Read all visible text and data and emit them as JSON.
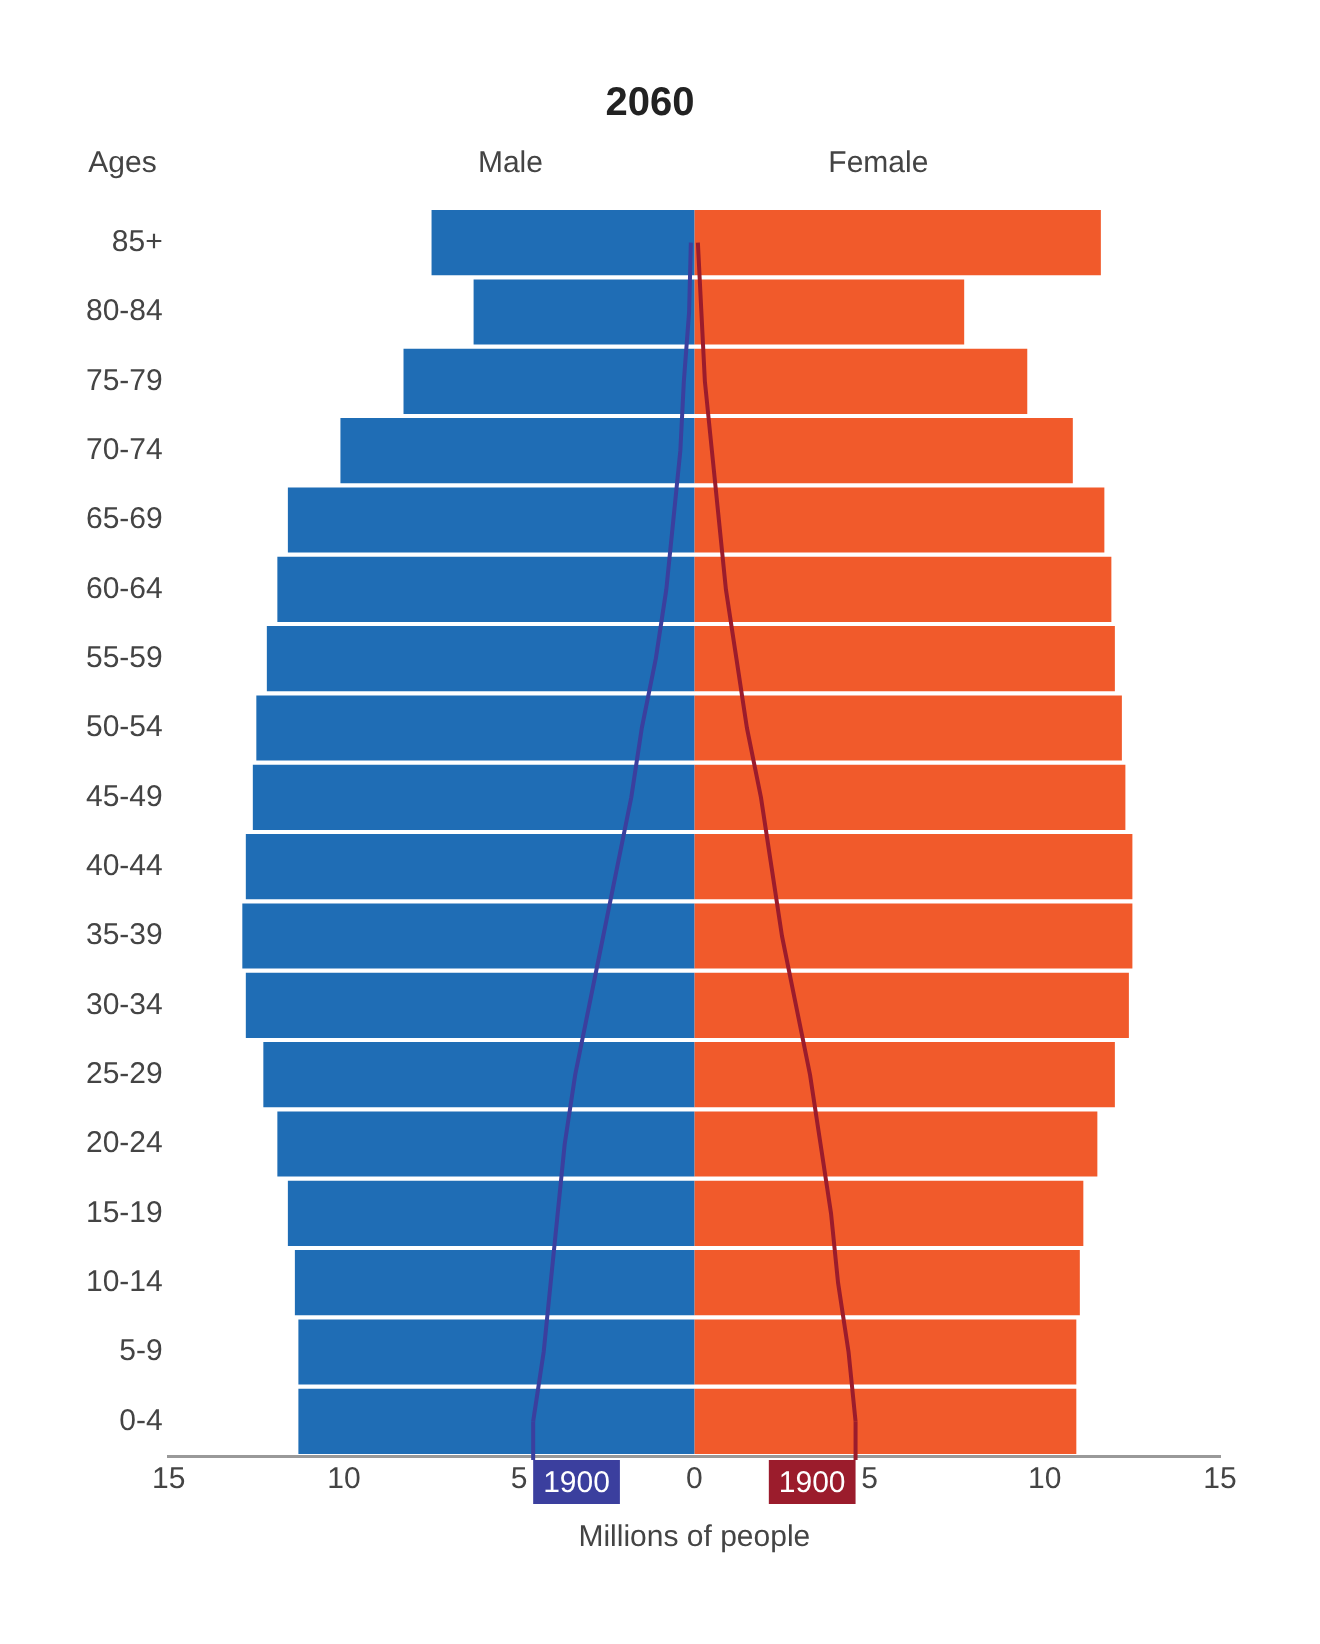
{
  "chart_data": {
    "type": "bar",
    "orientation": "horizontal",
    "stacked": true,
    "title": "2060",
    "xlabel": "Millions of people",
    "ylabel": "Ages",
    "categories": [
      "85+",
      "80-84",
      "75-79",
      "70-74",
      "65-69",
      "60-64",
      "55-59",
      "50-54",
      "45-49",
      "40-44",
      "35-39",
      "30-34",
      "25-29",
      "20-24",
      "15-19",
      "10-14",
      "5-9",
      "0-4"
    ],
    "series": [
      {
        "name": "Male",
        "color": "#1f6db5",
        "values": [
          -7.5,
          -6.3,
          -8.3,
          -10.1,
          -11.6,
          -11.9,
          -12.2,
          -12.5,
          -12.6,
          -12.8,
          -12.9,
          -12.8,
          -12.3,
          -11.9,
          -11.6,
          -11.4,
          -11.3,
          -11.3
        ]
      },
      {
        "name": "Female",
        "color": "#f15a2b",
        "values": [
          11.6,
          7.7,
          9.5,
          10.8,
          11.7,
          11.9,
          12.0,
          12.2,
          12.3,
          12.5,
          12.5,
          12.4,
          12.0,
          11.5,
          11.1,
          11.0,
          10.9,
          10.9
        ]
      },
      {
        "name": "1900",
        "type": "line",
        "color": "#3b3f9e",
        "values": [
          -0.1,
          -0.15,
          -0.3,
          -0.4,
          -0.6,
          -0.8,
          -1.1,
          -1.5,
          -1.8,
          -2.2,
          -2.6,
          -3.0,
          -3.4,
          -3.7,
          -3.9,
          -4.1,
          -4.3,
          -4.6
        ]
      },
      {
        "name": "1900",
        "type": "line",
        "color": "#9b1c2c",
        "values": [
          0.1,
          0.2,
          0.3,
          0.5,
          0.7,
          0.9,
          1.2,
          1.5,
          1.9,
          2.2,
          2.5,
          2.9,
          3.3,
          3.6,
          3.9,
          4.1,
          4.4,
          4.6
        ]
      }
    ],
    "xlim": [
      -15,
      15
    ],
    "xticks": [
      {
        "value": -15,
        "label": "15"
      },
      {
        "value": -10,
        "label": "10"
      },
      {
        "value": -5,
        "label": "5"
      },
      0,
      5,
      10,
      15
    ],
    "grid": false,
    "legend": "bottom",
    "marker": "none"
  }
}
